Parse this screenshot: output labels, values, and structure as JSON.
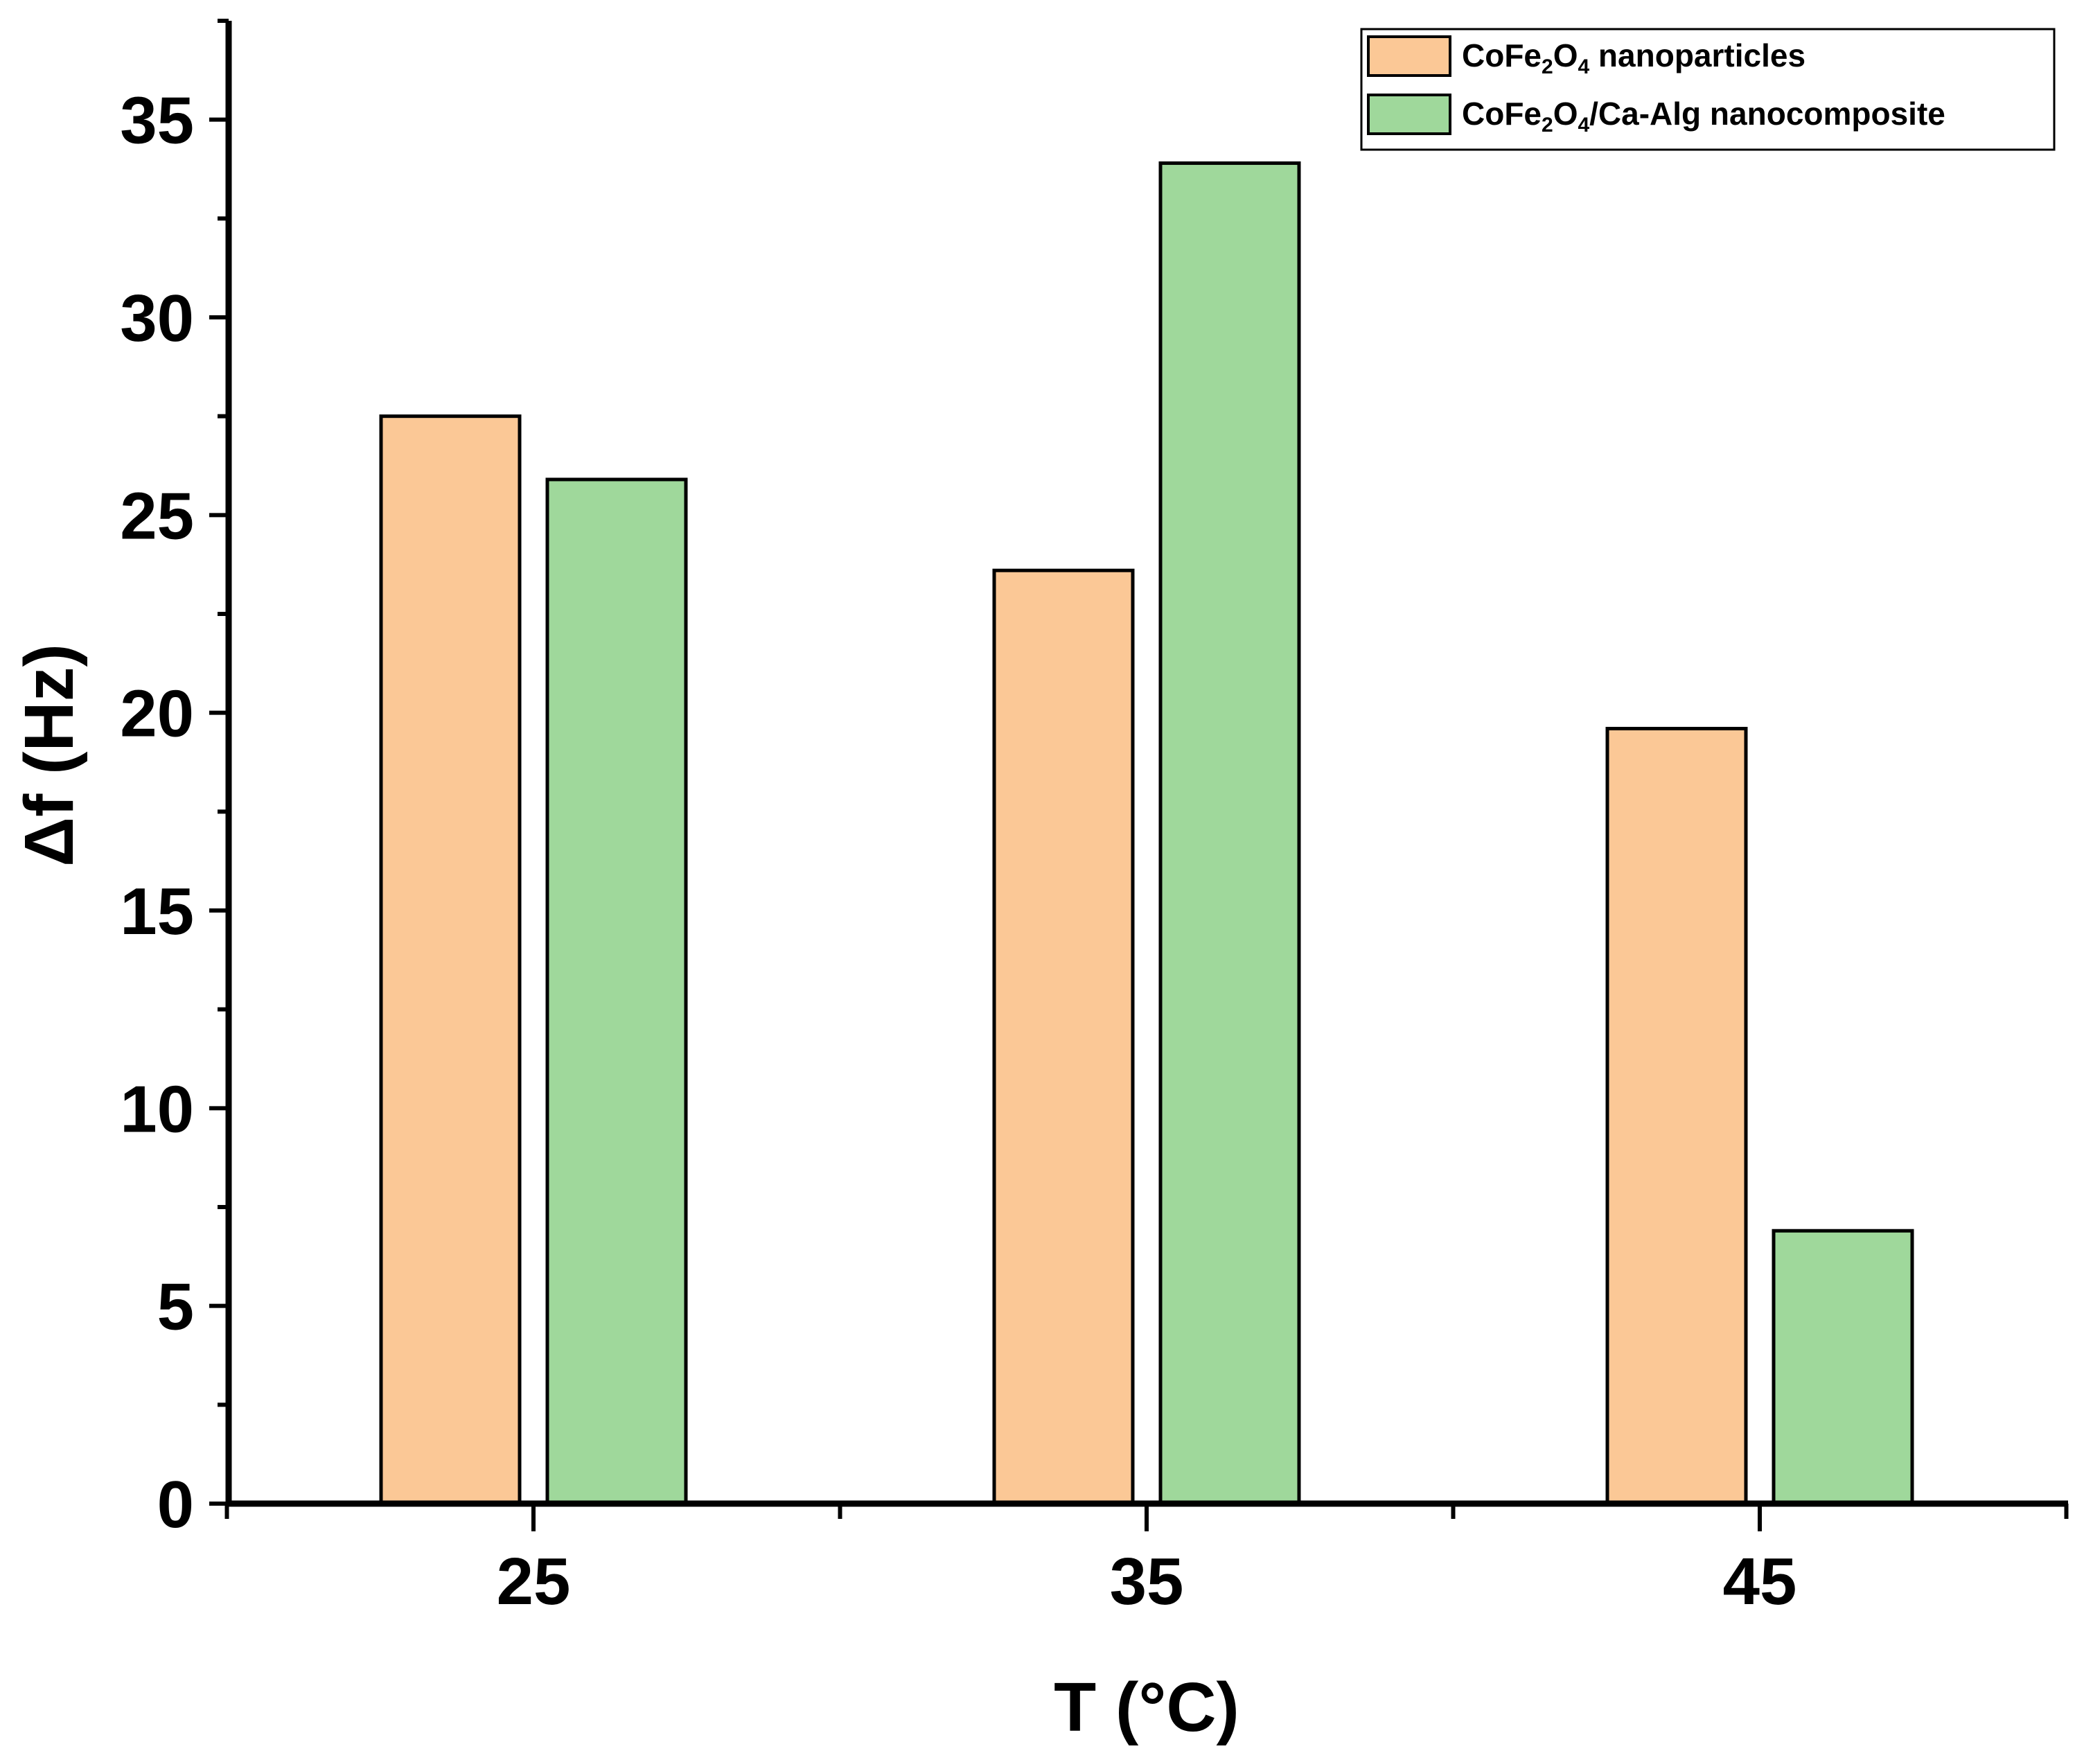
{
  "chart_data": {
    "type": "bar",
    "title": "",
    "xlabel": "T (°C)",
    "ylabel": "Δf (Hz)",
    "categories": [
      "25",
      "35",
      "45"
    ],
    "ylim": [
      0,
      37.5
    ],
    "yticks": [
      0,
      5,
      10,
      15,
      20,
      25,
      30,
      35
    ],
    "grid": false,
    "legend_position": "top-right",
    "series": [
      {
        "name": "CoFe2O4 nanoparticles",
        "legend_parts": [
          [
            "CoFe",
            "n"
          ],
          [
            "2",
            "sub"
          ],
          [
            "O",
            "n"
          ],
          [
            "4",
            "sub"
          ],
          [
            " nanoparticles",
            "n"
          ]
        ],
        "color": "#fbc896",
        "values": [
          27.5,
          23.6,
          19.6
        ]
      },
      {
        "name": "CoFe2O4/Ca-Alg nanocomposite",
        "legend_parts": [
          [
            "CoFe",
            "n"
          ],
          [
            "2",
            "sub"
          ],
          [
            "O",
            "n"
          ],
          [
            "4",
            "sub"
          ],
          [
            "/Ca-Alg nanocomposite",
            "n"
          ]
        ],
        "color": "#9fd89b",
        "values": [
          25.9,
          33.9,
          6.9
        ]
      }
    ]
  }
}
